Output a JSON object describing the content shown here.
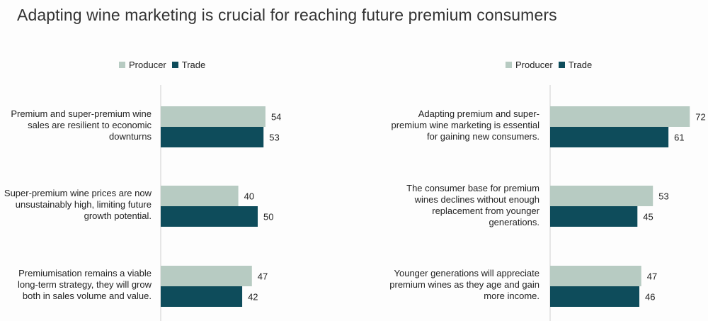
{
  "title": "Adapting wine marketing is crucial for reaching future premium consumers",
  "colors": {
    "producer": "#b7cbc2",
    "trade": "#0e4c5b",
    "axis": "#d0d0d0"
  },
  "chart_data": [
    {
      "type": "bar",
      "orientation": "horizontal",
      "legend": [
        "Producer",
        "Trade"
      ],
      "legend_placement": "top",
      "categories": [
        "Premium and super-premium wine sales are resilient to economic downturns",
        "Super-premium wine prices are now unsustainably high, limiting future growth potential.",
        "Premiumisation remains a viable long-term strategy, they will grow both in sales volume and value."
      ],
      "series": [
        {
          "name": "Producer",
          "values": [
            54,
            40,
            47
          ]
        },
        {
          "name": "Trade",
          "values": [
            53,
            50,
            42
          ]
        }
      ],
      "xlim": [
        0,
        72
      ]
    },
    {
      "type": "bar",
      "orientation": "horizontal",
      "legend": [
        "Producer",
        "Trade"
      ],
      "legend_placement": "top",
      "categories": [
        "Adapting premium and super-premium wine marketing is essential for gaining new consumers.",
        "The consumer base for premium wines declines without enough replacement from younger generations.",
        "Younger generations will appreciate premium wines as they age and gain more income."
      ],
      "series": [
        {
          "name": "Producer",
          "values": [
            72,
            53,
            47
          ]
        },
        {
          "name": "Trade",
          "values": [
            61,
            45,
            46
          ]
        }
      ],
      "xlim": [
        0,
        72
      ]
    }
  ],
  "panels": [
    {
      "legend": {
        "producer": "Producer",
        "trade": "Trade"
      },
      "labels": [
        "Premium and super-premium wine sales are resilient to economic downturns",
        "Super-premium wine prices are now unsustainably high, limiting future growth potential.",
        "Premiumisation remains a viable long-term strategy, they will grow both in sales volume and value."
      ]
    },
    {
      "legend": {
        "producer": "Producer",
        "trade": "Trade"
      },
      "labels": [
        "Adapting premium and super-premium wine marketing is essential for gaining new consumers.",
        "The consumer base for premium wines declines without enough replacement from younger generations.",
        "Younger generations will appreciate premium wines as they age and gain more income."
      ]
    }
  ]
}
